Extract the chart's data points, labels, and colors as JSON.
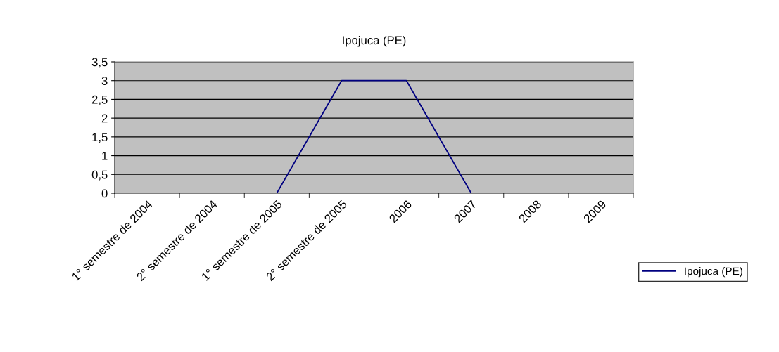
{
  "chart_data": {
    "type": "line",
    "title": "Ipojuca (PE)",
    "categories": [
      "1° semestre de 2004",
      "2° semestre de 2004",
      "1° semestre de 2005",
      "2° semestre de 2005",
      "2006",
      "2007",
      "2008",
      "2009"
    ],
    "series": [
      {
        "name": "Ipojuca (PE)",
        "color": "#000080",
        "values": [
          0,
          0,
          0,
          3,
          3,
          0,
          0,
          0
        ]
      }
    ],
    "ylim": [
      0,
      3.5
    ],
    "yticks": [
      0,
      {
        "value": 0.5,
        "label": "0,5"
      },
      1,
      {
        "value": 1.5,
        "label": "1,5"
      },
      2,
      {
        "value": 2.5,
        "label": "2,5"
      },
      3,
      {
        "value": 3.5,
        "label": "3,5"
      }
    ],
    "grid": "y",
    "legend": "right",
    "marker": "none",
    "line_style": "solid"
  }
}
